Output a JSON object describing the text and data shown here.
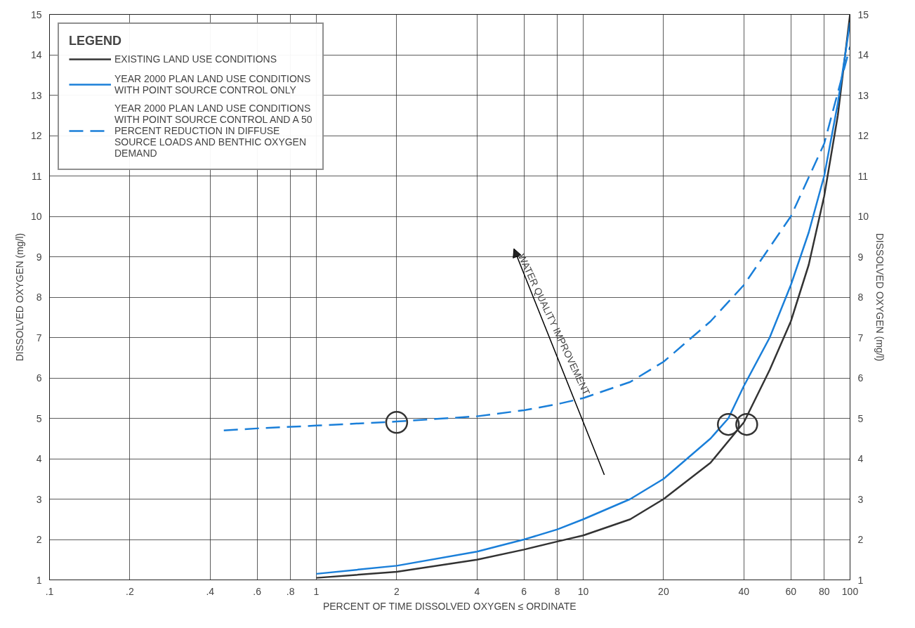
{
  "chart_data": {
    "type": "line",
    "xlabel": "PERCENT OF TIME DISSOLVED OXYGEN ≤ ORDINATE",
    "ylabel": "DISSOLVED OXYGEN (mg/l)",
    "y2label": "DISSOLVED OXYGEN (mg/l)",
    "legend_title": "LEGEND",
    "log": "x",
    "xlim": [
      0.1,
      100
    ],
    "ylim": [
      1,
      15
    ],
    "y2lim": [
      1,
      15
    ],
    "xticks": [
      {
        "value": 0.1,
        "label": ".1"
      },
      {
        "value": 0.2,
        "label": ".2"
      },
      {
        "value": 0.4,
        "label": ".4"
      },
      {
        "value": 0.6,
        "label": ".6"
      },
      {
        "value": 0.8,
        "label": ".8"
      },
      1,
      2,
      4,
      6,
      8,
      10,
      20,
      40,
      60,
      80,
      100
    ],
    "yticks": [
      1,
      2,
      3,
      4,
      5,
      6,
      7,
      8,
      9,
      10,
      11,
      12,
      13,
      14,
      15
    ],
    "y2ticks": [
      1,
      2,
      3,
      4,
      5,
      6,
      7,
      8,
      9,
      10,
      11,
      12,
      13,
      14,
      15
    ],
    "grid": true,
    "legend": "top left",
    "annotations": [
      "WATER QUALITY IMPROVEMENT"
    ],
    "series": [
      {
        "name": "EXISTING LAND USE CONDITIONS",
        "color": "#333333",
        "line_style": "solid",
        "x": [
          1,
          2,
          4,
          6,
          8,
          10,
          15,
          20,
          30,
          40,
          50,
          60,
          70,
          80,
          90,
          100
        ],
        "values": [
          1.05,
          1.2,
          1.5,
          1.75,
          1.95,
          2.1,
          2.5,
          3.0,
          3.9,
          4.9,
          6.2,
          7.4,
          8.8,
          10.5,
          12.5,
          15
        ]
      },
      {
        "name": "YEAR 2000 PLAN LAND USE CONDITIONS WITH POINT SOURCE CONTROL ONLY",
        "color": "#1a7fd9",
        "line_style": "solid",
        "x": [
          1,
          2,
          4,
          6,
          8,
          10,
          15,
          20,
          30,
          35,
          40,
          50,
          60,
          70,
          80,
          90,
          100
        ],
        "values": [
          1.15,
          1.35,
          1.7,
          2.0,
          2.25,
          2.5,
          3.0,
          3.5,
          4.5,
          5.0,
          5.8,
          7.0,
          8.3,
          9.6,
          11.0,
          12.8,
          14.8
        ]
      },
      {
        "name": "YEAR 2000 PLAN LAND USE CONDITIONS WITH POINT SOURCE CONTROL AND A 50 PERCENT REDUCTION IN DIFFUSE SOURCE LOADS AND BENTHIC OXYGEN DEMAND",
        "color": "#1a7fd9",
        "line_style": "dashed",
        "x": [
          0.45,
          0.6,
          1,
          2,
          4,
          6,
          8,
          10,
          15,
          20,
          30,
          40,
          60,
          80,
          100
        ],
        "values": [
          4.7,
          4.75,
          4.82,
          4.92,
          5.05,
          5.2,
          5.35,
          5.5,
          5.9,
          6.4,
          7.4,
          8.3,
          10.0,
          11.8,
          14.2
        ]
      },
      {
        "type": "scatter",
        "marker": "circle",
        "color": "#333333",
        "x": [
          2,
          35,
          41
        ],
        "values": [
          4.9,
          4.85,
          4.85
        ]
      }
    ]
  }
}
